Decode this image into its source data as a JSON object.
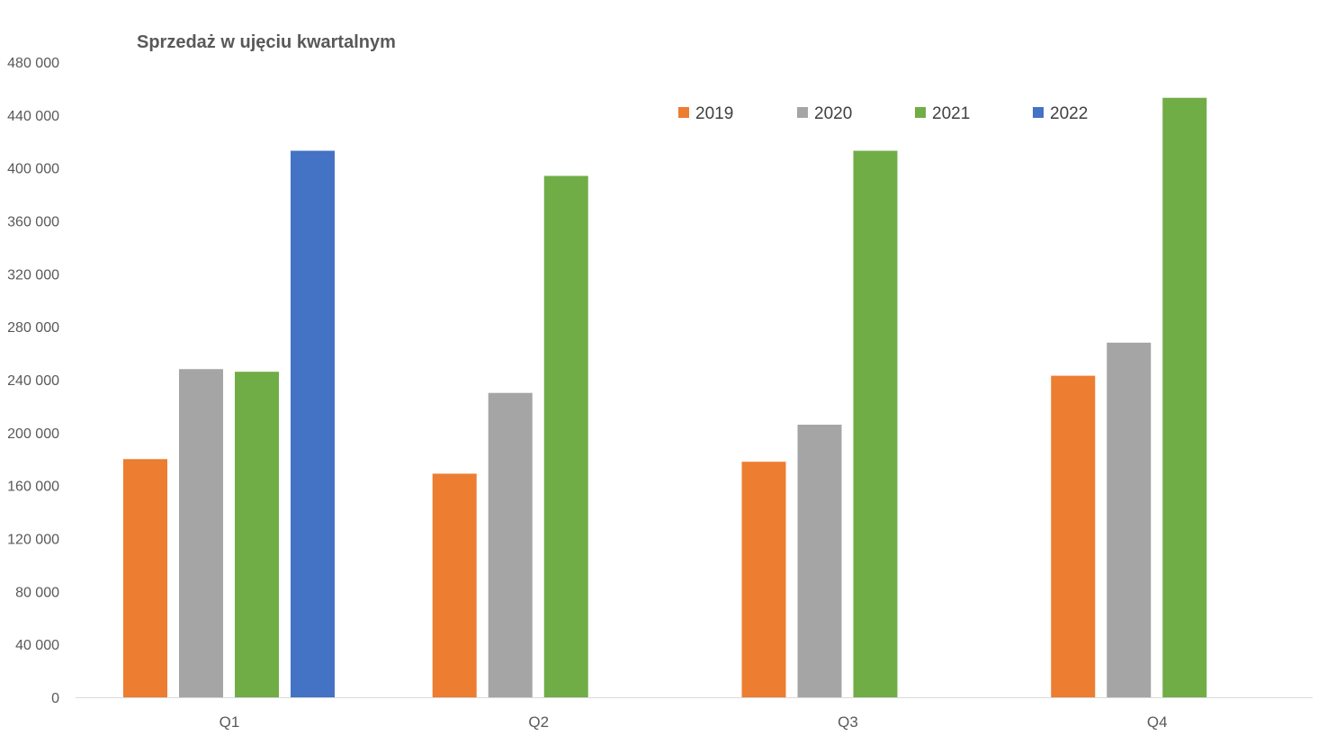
{
  "chart_data": {
    "type": "bar",
    "title": "Sprzedaż w ujęciu kwartalnym",
    "xlabel": "",
    "ylabel": "",
    "categories": [
      "Q1",
      "Q2",
      "Q3",
      "Q4"
    ],
    "series": [
      {
        "name": "2019",
        "color": "#ED7D31",
        "values": [
          180000,
          169000,
          178000,
          243000
        ]
      },
      {
        "name": "2020",
        "color": "#A5A5A5",
        "values": [
          248000,
          230000,
          206000,
          268000
        ]
      },
      {
        "name": "2021",
        "color": "#70AD47",
        "values": [
          246000,
          394000,
          413000,
          453000
        ]
      },
      {
        "name": "2022",
        "color": "#4472C4",
        "values": [
          413000,
          null,
          null,
          null
        ]
      }
    ],
    "ylim": [
      0,
      480000
    ],
    "yticks": [
      "0",
      "40 000",
      "80 000",
      "120 000",
      "160 000",
      "200 000",
      "240 000",
      "280 000",
      "320 000",
      "360 000",
      "400 000",
      "440 000",
      "480 000"
    ],
    "grid": false,
    "legend_position": "top-right"
  }
}
